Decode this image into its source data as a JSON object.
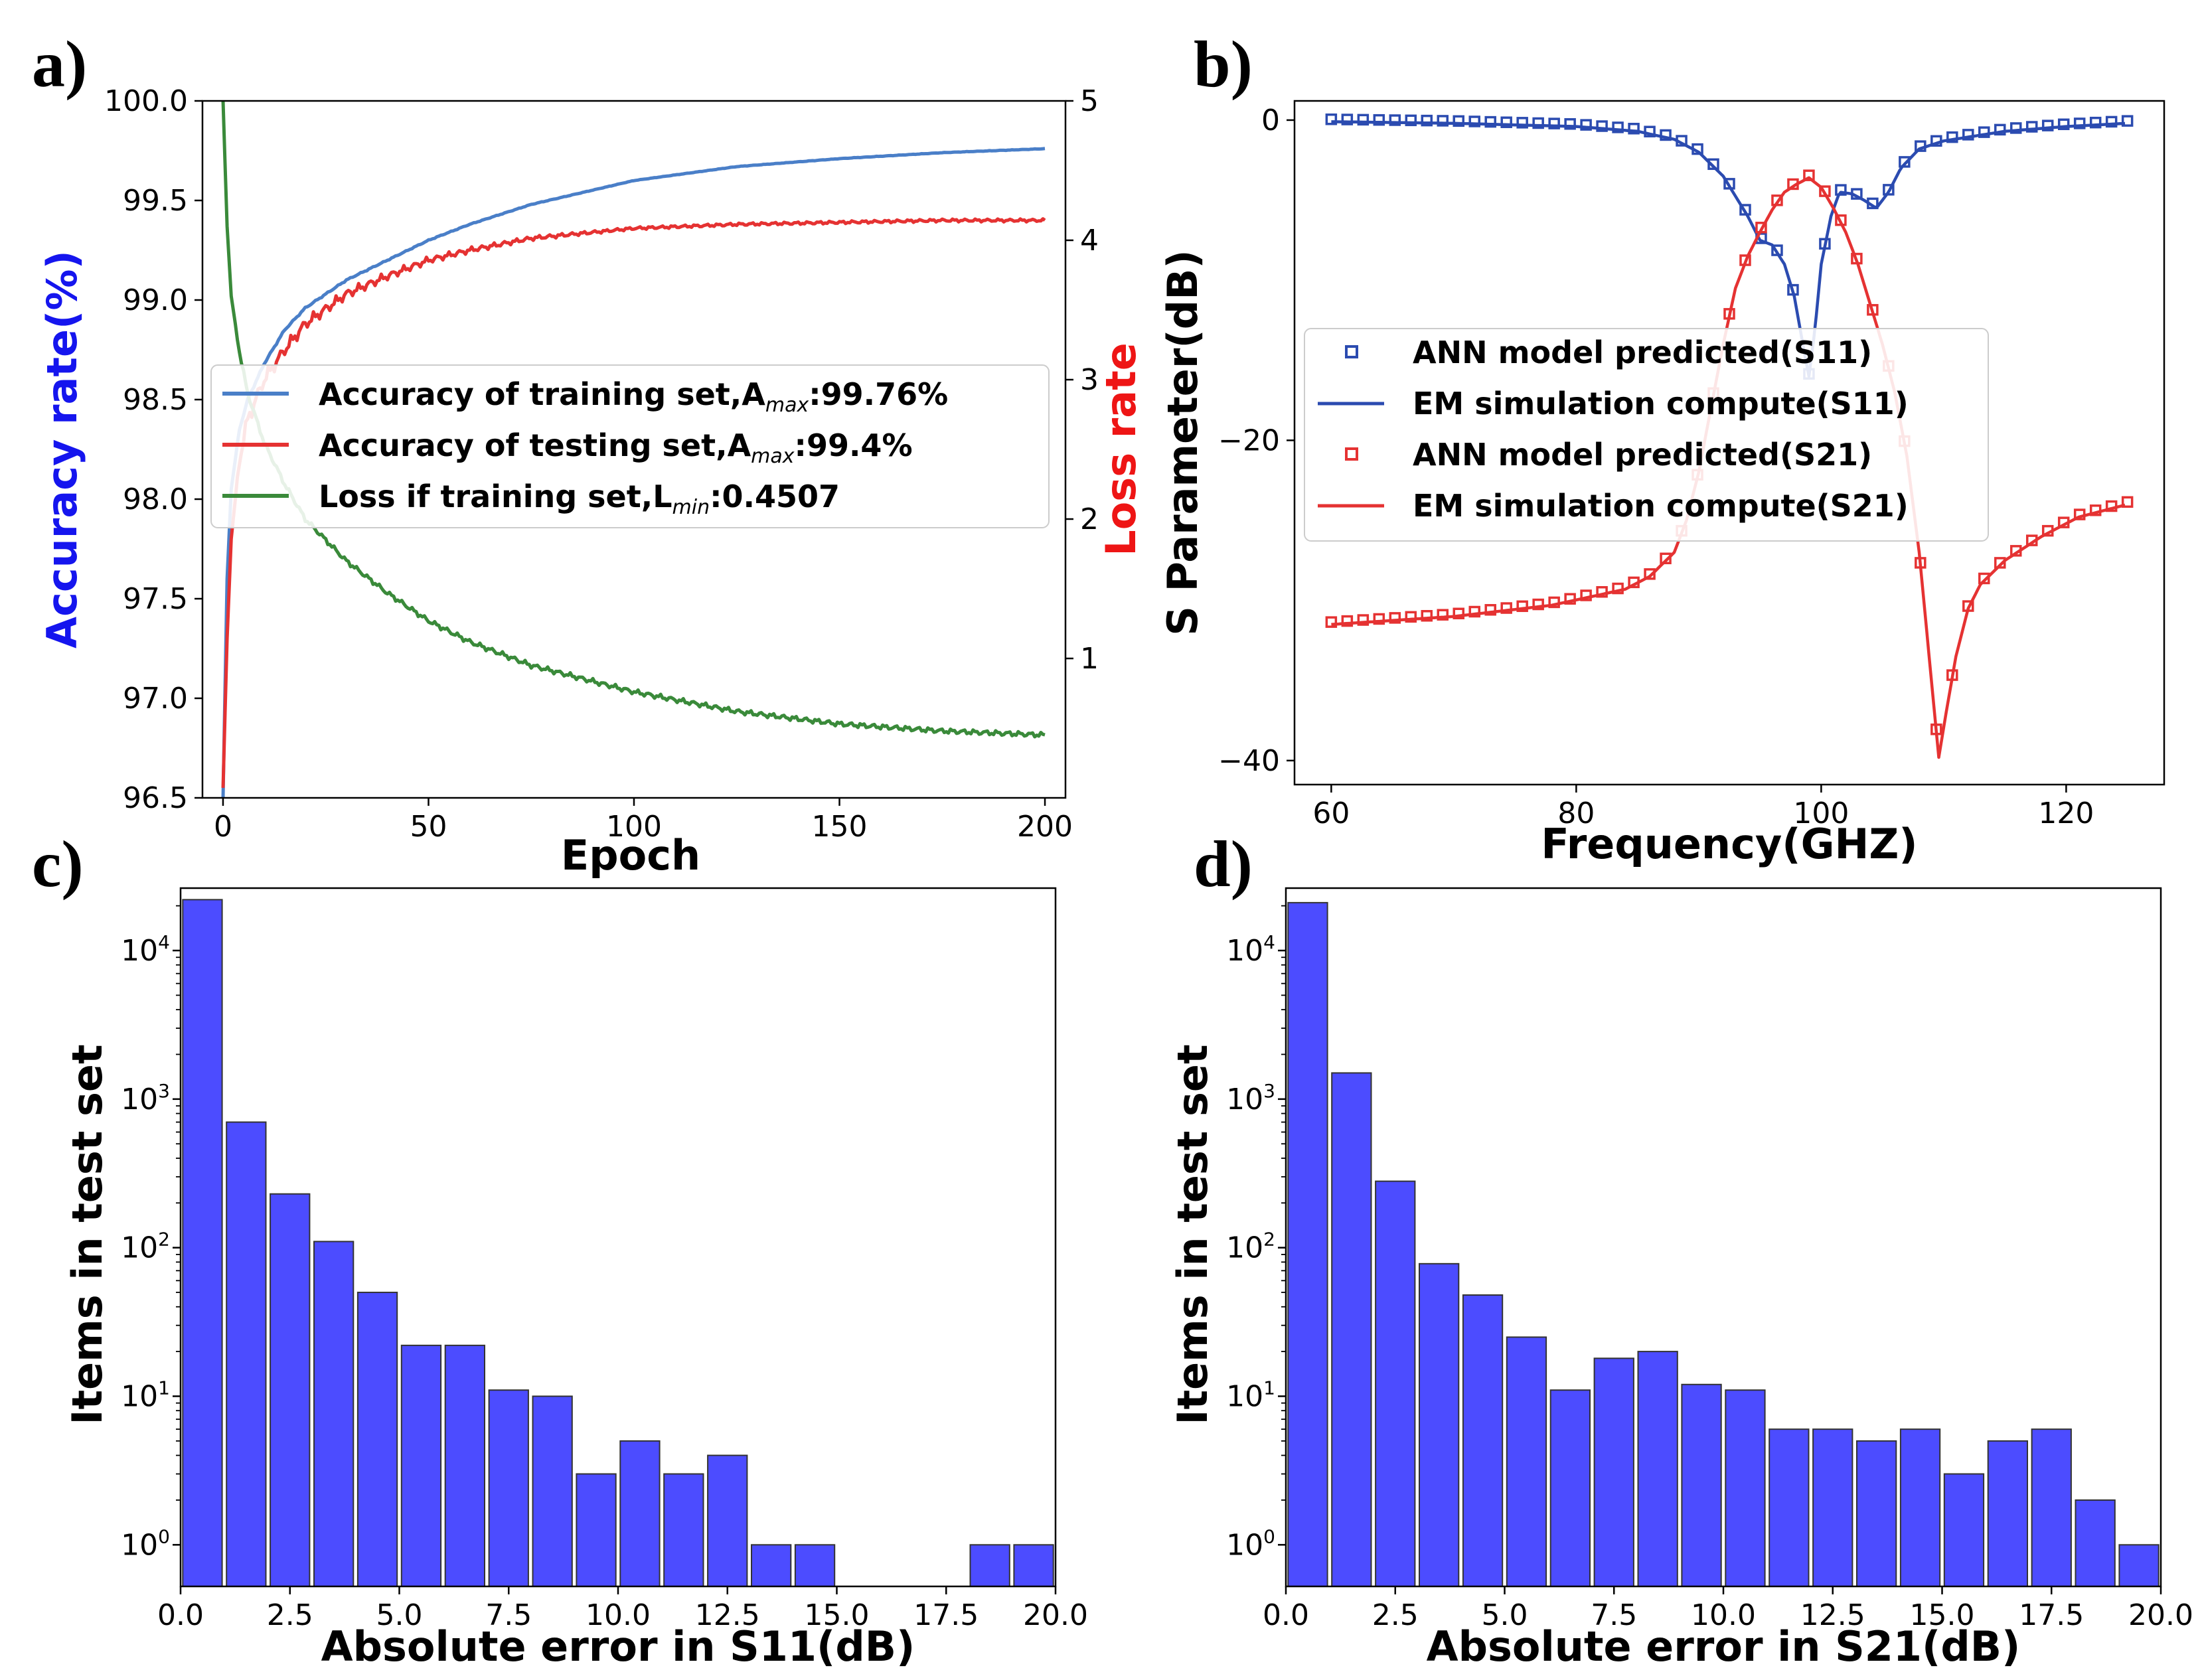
{
  "chart_data": [
    {
      "panel": "a)",
      "type": "line",
      "xlabel": "Epoch",
      "ylabel": "Accuracy rate(%)",
      "y2label": "Loss rate",
      "xlim": [
        -5,
        205
      ],
      "ylim": [
        96.5,
        100.0
      ],
      "y2lim": [
        0,
        5
      ],
      "xticks": [
        "0",
        "50",
        "100",
        "150",
        "200"
      ],
      "yticks": [
        "96.5",
        "97.0",
        "97.5",
        "98.0",
        "98.5",
        "99.0",
        "99.5",
        "100.0"
      ],
      "y2ticks": [
        "1",
        "2",
        "3",
        "4",
        "5"
      ],
      "legend_position": "center",
      "series": [
        {
          "name": "Accuracy of training set",
          "legend_main": "Accuracy of training set,A",
          "legend_sub": "max",
          "legend_tail": ":99.76%",
          "axis": "left",
          "color": "#4a7fc8",
          "final": 99.76,
          "points": [
            [
              0,
              96.5
            ],
            [
              1,
              97.6
            ],
            [
              2,
              98.05
            ],
            [
              4,
              98.35
            ],
            [
              6,
              98.5
            ],
            [
              10,
              98.68
            ],
            [
              15,
              98.85
            ],
            [
              20,
              98.96
            ],
            [
              30,
              99.1
            ],
            [
              40,
              99.2
            ],
            [
              50,
              99.3
            ],
            [
              60,
              99.38
            ],
            [
              75,
              99.48
            ],
            [
              100,
              99.6
            ],
            [
              125,
              99.67
            ],
            [
              150,
              99.71
            ],
            [
              175,
              99.74
            ],
            [
              200,
              99.76
            ]
          ]
        },
        {
          "name": "Accuracy of testing set",
          "legend_main": "Accuracy of testing set,A",
          "legend_sub": "max",
          "legend_tail": ":99.4%",
          "axis": "left",
          "color": "#e53232",
          "final": 99.4,
          "points": [
            [
              0,
              96.55
            ],
            [
              1,
              97.3
            ],
            [
              2,
              97.8
            ],
            [
              4,
              98.2
            ],
            [
              6,
              98.4
            ],
            [
              10,
              98.6
            ],
            [
              15,
              98.75
            ],
            [
              20,
              98.88
            ],
            [
              30,
              99.03
            ],
            [
              40,
              99.12
            ],
            [
              50,
              99.2
            ],
            [
              60,
              99.25
            ],
            [
              75,
              99.31
            ],
            [
              100,
              99.36
            ],
            [
              125,
              99.38
            ],
            [
              150,
              99.39
            ],
            [
              175,
              99.4
            ],
            [
              200,
              99.4
            ]
          ]
        },
        {
          "name": "Loss if training set",
          "legend_main": "Loss if training set,L",
          "legend_sub": "min",
          "legend_tail": ":0.4507",
          "axis": "right",
          "color": "#3a8a3a",
          "final": 0.4507,
          "points": [
            [
              0,
              5.0
            ],
            [
              1,
              4.1
            ],
            [
              2,
              3.6
            ],
            [
              4,
              3.2
            ],
            [
              6,
              2.9
            ],
            [
              10,
              2.55
            ],
            [
              15,
              2.25
            ],
            [
              20,
              2.0
            ],
            [
              30,
              1.7
            ],
            [
              40,
              1.47
            ],
            [
              50,
              1.27
            ],
            [
              60,
              1.12
            ],
            [
              75,
              0.95
            ],
            [
              100,
              0.76
            ],
            [
              125,
              0.62
            ],
            [
              150,
              0.53
            ],
            [
              175,
              0.48
            ],
            [
              200,
              0.4507
            ]
          ]
        }
      ]
    },
    {
      "panel": "b)",
      "type": "line",
      "xlabel": "Frequency(GHZ)",
      "ylabel": "S Parameter(dB)",
      "xlim": [
        57,
        128
      ],
      "ylim": [
        -41.5,
        1.2
      ],
      "xticks": [
        "60",
        "80",
        "100",
        "120"
      ],
      "yticks": [
        "0",
        "−20",
        "−40"
      ],
      "legend_position": "center-left",
      "series": [
        {
          "name": "ANN model predicted(S11)",
          "style": "markers",
          "color": "#2b4bb0"
        },
        {
          "name": "EM simulation compute(S11)",
          "style": "line",
          "color": "#2b4bb0",
          "points": [
            [
              60,
              -0.1
            ],
            [
              70,
              -0.2
            ],
            [
              80,
              -0.4
            ],
            [
              85,
              -0.7
            ],
            [
              88,
              -1.2
            ],
            [
              90,
              -2
            ],
            [
              92,
              -3.5
            ],
            [
              94,
              -6
            ],
            [
              95,
              -7.5
            ],
            [
              96,
              -7.8
            ],
            [
              97,
              -9
            ],
            [
              97.8,
              -11
            ],
            [
              98.5,
              -14
            ],
            [
              99,
              -16
            ],
            [
              99.5,
              -13
            ],
            [
              100,
              -9
            ],
            [
              100.8,
              -6
            ],
            [
              101.5,
              -4.5
            ],
            [
              102.5,
              -4.6
            ],
            [
              103.5,
              -5
            ],
            [
              104.5,
              -5.5
            ],
            [
              105.5,
              -4.5
            ],
            [
              106.5,
              -3
            ],
            [
              108,
              -1.8
            ],
            [
              110,
              -1.3
            ],
            [
              115,
              -0.7
            ],
            [
              120,
              -0.4
            ],
            [
              125,
              -0.2
            ]
          ]
        },
        {
          "name": "ANN model predicted(S21)",
          "style": "markers",
          "color": "#e53232"
        },
        {
          "name": "EM simulation compute(S21)",
          "style": "line",
          "color": "#e53232",
          "points": [
            [
              60,
              -31.5
            ],
            [
              70,
              -31
            ],
            [
              78,
              -30.3
            ],
            [
              84,
              -29.3
            ],
            [
              86,
              -28.5
            ],
            [
              88,
              -27
            ],
            [
              89,
              -25
            ],
            [
              90,
              -22
            ],
            [
              91,
              -18
            ],
            [
              92,
              -14
            ],
            [
              93,
              -10.5
            ],
            [
              94,
              -8.5
            ],
            [
              95,
              -7
            ],
            [
              96,
              -5.6
            ],
            [
              97,
              -4.5
            ],
            [
              98,
              -4
            ],
            [
              99,
              -3.6
            ],
            [
              100,
              -4.2
            ],
            [
              101,
              -5.5
            ],
            [
              102,
              -7
            ],
            [
              103,
              -9
            ],
            [
              104,
              -11.5
            ],
            [
              105,
              -14
            ],
            [
              106,
              -17
            ],
            [
              107,
              -21
            ],
            [
              108,
              -27
            ],
            [
              109,
              -35
            ],
            [
              109.6,
              -39.8
            ],
            [
              110.2,
              -37
            ],
            [
              111,
              -33.5
            ],
            [
              112,
              -30.5
            ],
            [
              113,
              -29
            ],
            [
              115,
              -27.5
            ],
            [
              118,
              -26
            ],
            [
              121,
              -24.8
            ],
            [
              125,
              -24
            ]
          ]
        }
      ]
    },
    {
      "panel": "c)",
      "type": "bar",
      "xlabel": "Absolute error in S11(dB)",
      "ylabel": "Items in test set",
      "xlim": [
        0.0,
        20.0
      ],
      "yscale": "log",
      "ylim_log": [
        -0.28,
        4.42
      ],
      "xticks": [
        "0.0",
        "2.5",
        "5.0",
        "7.5",
        "10.0",
        "12.5",
        "15.0",
        "17.5",
        "20.0"
      ],
      "yticks": [
        {
          "base": "10",
          "exp": "0"
        },
        {
          "base": "10",
          "exp": "1"
        },
        {
          "base": "10",
          "exp": "2"
        },
        {
          "base": "10",
          "exp": "3"
        },
        {
          "base": "10",
          "exp": "4"
        }
      ],
      "bar_color": "#4c4cff",
      "bin_width": 1.0,
      "values": [
        22000,
        700,
        230,
        110,
        50,
        22,
        22,
        11,
        10,
        3,
        5,
        3,
        4,
        1,
        1,
        0,
        0,
        0,
        1,
        1
      ]
    },
    {
      "panel": "d)",
      "type": "bar",
      "xlabel": "Absolute error in S21(dB)",
      "ylabel": "Items in test set",
      "xlim": [
        0.0,
        20.0
      ],
      "yscale": "log",
      "ylim_log": [
        -0.28,
        4.42
      ],
      "xticks": [
        "0.0",
        "2.5",
        "5.0",
        "7.5",
        "10.0",
        "12.5",
        "15.0",
        "17.5",
        "20.0"
      ],
      "yticks": [
        {
          "base": "10",
          "exp": "0"
        },
        {
          "base": "10",
          "exp": "1"
        },
        {
          "base": "10",
          "exp": "2"
        },
        {
          "base": "10",
          "exp": "3"
        },
        {
          "base": "10",
          "exp": "4"
        }
      ],
      "bar_color": "#4c4cff",
      "bin_width": 1.0,
      "values": [
        21000,
        1500,
        280,
        78,
        48,
        25,
        11,
        18,
        20,
        12,
        11,
        6,
        6,
        5,
        6,
        3,
        5,
        6,
        2,
        1
      ]
    }
  ]
}
